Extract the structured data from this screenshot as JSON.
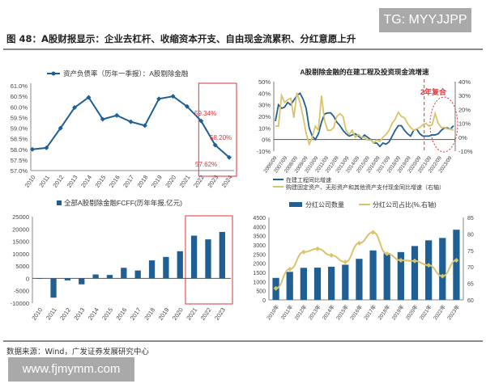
{
  "watermark_top": "TG: MYYJJPP",
  "figure_title": "图 48：A股财报显示：企业去杠杆、收缩资本开支、自由现金流累积、分红意愿上升",
  "source": "数据来源：Wind，广发证券发展研究中心",
  "watermark_bottom": "www.fjmymm.com",
  "colors": {
    "blue": "#1f5f93",
    "gold": "#d9c46a",
    "red": "#d9363e",
    "axis": "#555555"
  },
  "chart_data": [
    {
      "type": "line",
      "title": "资产负债率（历年一季报）：A股剔除金融",
      "legend": [
        "资产负债率（历年一季报）：A股剔除金融"
      ],
      "x": [
        "2010",
        "2011",
        "2012",
        "2013",
        "2014",
        "2015",
        "2016",
        "2017",
        "2018",
        "2019",
        "2020",
        "2021",
        "2022",
        "2023",
        "2024"
      ],
      "values": [
        58.0,
        58.07,
        59.0,
        59.97,
        60.45,
        59.42,
        59.6,
        59.3,
        59.12,
        60.38,
        60.5,
        60.02,
        59.34,
        58.2,
        57.62
      ],
      "ylim": [
        57.0,
        61.0
      ],
      "yticks": [
        "57.0%",
        "57.5%",
        "58.0%",
        "58.5%",
        "59.0%",
        "59.5%",
        "60.0%",
        "60.5%",
        "61.0%"
      ],
      "annotations": [
        "59.34%",
        "58.20%",
        "57.62%"
      ],
      "highlight_range": [
        "2022",
        "2024"
      ]
    },
    {
      "type": "line",
      "title": "A股剔除金融的在建工程及投资现金流增速",
      "x_ticks": [
        "2006/09",
        "2007/09",
        "2008/09",
        "2009/09",
        "2010/09",
        "2011/09",
        "2012/09",
        "2013/09",
        "2014/09",
        "2015/09",
        "2016/09",
        "2017/09",
        "2018/09",
        "2019/09",
        "2020/09",
        "2021/09",
        "2022/09",
        "2023/09"
      ],
      "y_left_ticks": [
        "-10%",
        "0%",
        "10%",
        "20%",
        "30%",
        "40%",
        "50%"
      ],
      "y_right_ticks": [
        "-10%",
        "0%",
        "10%",
        "20%",
        "30%",
        "40%"
      ],
      "ylim_left": [
        -10,
        50
      ],
      "ylim_right": [
        -10,
        40
      ],
      "annotation": "2年复合",
      "series": [
        {
          "name": "在建工程同比增速",
          "axis": "left",
          "values": [
            16,
            30,
            27,
            28,
            32,
            30,
            34,
            38,
            40,
            35,
            27,
            10,
            3,
            0,
            5,
            15,
            22,
            23,
            23,
            20,
            15,
            12,
            8,
            5,
            3,
            4,
            5,
            3,
            1,
            4,
            2,
            0,
            -3,
            -3,
            -6,
            -3,
            -4,
            -2,
            3,
            8,
            12,
            12,
            8,
            5,
            3,
            8,
            9,
            5,
            3,
            3,
            3,
            4,
            4,
            5,
            8,
            10,
            10,
            9,
            12
          ]
        },
        {
          "name": "购建固定资产、无形资产和其他资产支付现金同比增速（右轴）",
          "axis": "right",
          "values": [
            8,
            8,
            30,
            25,
            27,
            28,
            14,
            32,
            25,
            15,
            3,
            -5,
            0,
            8,
            5,
            30,
            12,
            5,
            5,
            7,
            15,
            17,
            15,
            5,
            2,
            5,
            0,
            2,
            0,
            0,
            -2,
            -2,
            -4,
            -2,
            -3,
            0,
            2,
            5,
            10,
            13,
            18,
            15,
            14,
            10,
            7,
            5,
            6,
            7,
            9,
            10,
            8,
            9,
            17,
            10,
            7,
            7,
            6,
            6,
            5
          ]
        }
      ]
    },
    {
      "type": "bar",
      "title": "全部A股剔除金融FCFF(历年年报,亿元)",
      "legend": [
        "全部A股剔除金融FCFF(历年年报,亿元)"
      ],
      "categories": [
        "2010",
        "2011",
        "2012",
        "2013",
        "2014",
        "2015",
        "2016",
        "2017",
        "2018",
        "2019",
        "2020",
        "2021",
        "2022",
        "2023"
      ],
      "values": [
        -200,
        -7800,
        -800,
        -2400,
        1600,
        1400,
        4300,
        3200,
        7300,
        8700,
        11000,
        17300,
        15800,
        18800
      ],
      "ylim": [
        -10000,
        25000
      ],
      "yticks": [
        "-10000",
        "-5000",
        "0",
        "5000",
        "10000",
        "15000",
        "20000",
        "25000"
      ],
      "highlight_range": [
        "2021",
        "2023"
      ]
    },
    {
      "type": "bar",
      "title": "分红公司数量 / 分红公司占比",
      "categories": [
        "2010年",
        "2011年",
        "2012年",
        "2013年",
        "2014年",
        "2015年",
        "2016年",
        "2017年",
        "2018年",
        "2019年",
        "2020年",
        "2021年",
        "2022年",
        "2023年"
      ],
      "series": [
        {
          "name": "分红公司数量",
          "type": "bar",
          "axis": "left",
          "values": [
            1200,
            1530,
            1750,
            1760,
            1810,
            1920,
            2240,
            2700,
            2550,
            2610,
            2940,
            3250,
            3380,
            3830
          ]
        },
        {
          "name": "分红公司占比(%,右轴)",
          "type": "line",
          "axis": "right",
          "values": [
            63.5,
            69.3,
            74.5,
            75.5,
            73.5,
            71.5,
            77.2,
            80.5,
            74.0,
            72.0,
            71.8,
            70.5,
            67.2,
            72.0
          ]
        }
      ],
      "ylim_left": [
        0,
        4500
      ],
      "ylim_right": [
        60,
        85
      ],
      "y_left_ticks": [
        "0",
        "500",
        "1000",
        "1500",
        "2000",
        "2500",
        "3000",
        "3500",
        "4000",
        "4500"
      ],
      "y_right_ticks": [
        "60",
        "65",
        "70",
        "75",
        "80",
        "85"
      ]
    }
  ]
}
